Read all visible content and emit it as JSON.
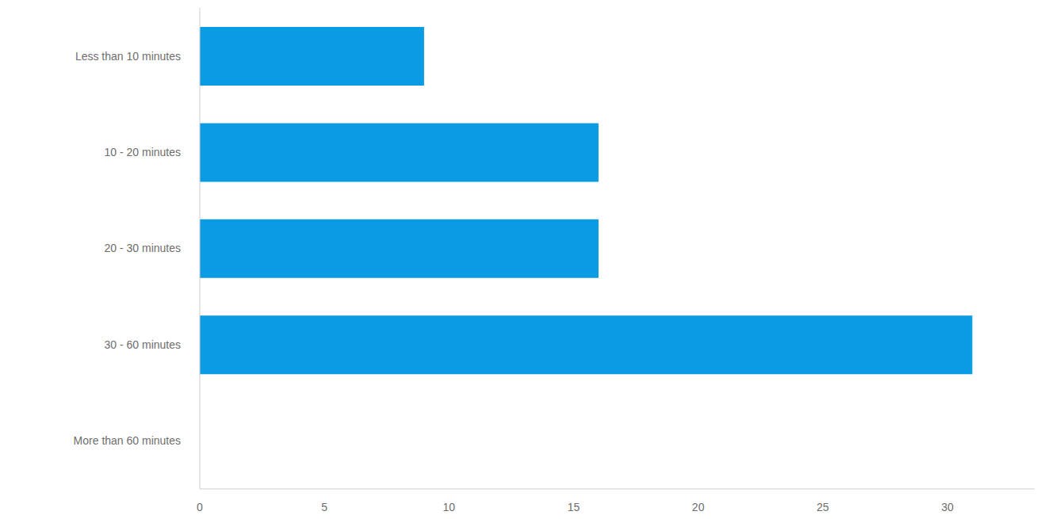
{
  "chart_data": {
    "type": "bar",
    "orientation": "horizontal",
    "categories": [
      "Less than 10 minutes",
      "10 - 20 minutes",
      "20 - 30 minutes",
      "30 - 60 minutes",
      "More than 60 minutes"
    ],
    "values": [
      9,
      16,
      16,
      31,
      0
    ],
    "color": "#0a9be3",
    "xlim": [
      0,
      33.5
    ],
    "xticks": [
      0,
      5,
      10,
      15,
      20,
      25,
      30
    ],
    "grid": false
  }
}
